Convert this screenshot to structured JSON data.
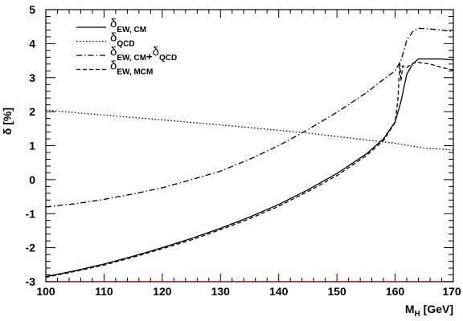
{
  "chart_data": {
    "type": "line",
    "title": "",
    "xlabel": "M_H [GeV]",
    "ylabel": "δ [%]",
    "xlim": [
      100,
      170
    ],
    "ylim": [
      -3,
      5
    ],
    "xticks": [
      100,
      110,
      120,
      130,
      140,
      150,
      160,
      170
    ],
    "yticks": [
      -3,
      -2,
      -1,
      0,
      1,
      2,
      3,
      4,
      5
    ],
    "grid": false,
    "legend_position": "top-left",
    "series": [
      {
        "name": "δ_EW, CM",
        "style": "solid",
        "x": [
          100,
          105,
          110,
          115,
          120,
          125,
          130,
          135,
          140,
          145,
          150,
          155,
          158,
          160,
          161,
          162,
          163,
          164,
          166,
          168,
          170
        ],
        "y": [
          -2.85,
          -2.68,
          -2.48,
          -2.25,
          -2.0,
          -1.73,
          -1.43,
          -1.1,
          -0.73,
          -0.3,
          0.18,
          0.75,
          1.2,
          1.7,
          2.3,
          3.1,
          3.4,
          3.55,
          3.55,
          3.55,
          3.52
        ]
      },
      {
        "name": "δ_QCD",
        "style": "dotted",
        "x": [
          100,
          105,
          110,
          115,
          120,
          125,
          130,
          135,
          140,
          145,
          150,
          155,
          160,
          165,
          170
        ],
        "y": [
          2.05,
          1.97,
          1.9,
          1.83,
          1.76,
          1.68,
          1.61,
          1.53,
          1.45,
          1.37,
          1.27,
          1.17,
          1.07,
          0.93,
          0.87
        ]
      },
      {
        "name": "δ_EW, CM+δ_QCD",
        "style": "dashdot",
        "x": [
          100,
          105,
          110,
          115,
          120,
          125,
          130,
          135,
          140,
          145,
          150,
          155,
          158,
          160,
          161,
          162,
          163,
          164,
          166,
          168,
          170
        ],
        "y": [
          -0.8,
          -0.71,
          -0.58,
          -0.42,
          -0.24,
          0.0,
          0.25,
          0.6,
          1.0,
          1.47,
          1.98,
          2.55,
          2.95,
          3.2,
          3.5,
          4.1,
          4.35,
          4.45,
          4.43,
          4.4,
          4.35
        ]
      },
      {
        "name": "δ_EW, MCM",
        "style": "dashed",
        "x": [
          100,
          105,
          110,
          115,
          120,
          125,
          130,
          135,
          140,
          145,
          150,
          155,
          158,
          160,
          160.5,
          160.8,
          161,
          161.3,
          162,
          163,
          164,
          166,
          168,
          170
        ],
        "y": [
          -2.87,
          -2.7,
          -2.51,
          -2.28,
          -2.03,
          -1.77,
          -1.47,
          -1.15,
          -0.78,
          -0.35,
          0.12,
          0.7,
          1.15,
          1.68,
          2.4,
          3.45,
          2.9,
          3.35,
          3.3,
          3.42,
          3.45,
          3.4,
          3.3,
          3.22
        ]
      }
    ]
  }
}
